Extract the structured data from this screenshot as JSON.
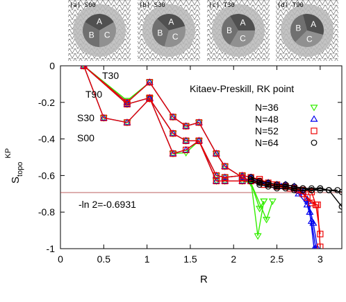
{
  "chart_data": {
    "type": "line",
    "title": "",
    "xlabel": "R",
    "ylabel": "S_topo^KP",
    "ylabel_main": "S",
    "ylabel_sub": "topo",
    "ylabel_sup": "KP",
    "xlim": [
      0,
      3.25
    ],
    "ylim": [
      -1,
      0
    ],
    "xticks": [
      0,
      0.5,
      1,
      1.5,
      2,
      2.5,
      3
    ],
    "xtick_labels": [
      "0",
      "0.5",
      "1",
      "1.5",
      "2",
      "2.5",
      "3"
    ],
    "yticks": [
      0,
      -0.2,
      -0.4,
      -0.6,
      -0.8,
      -1
    ],
    "ytick_labels": [
      "0",
      "-0.2",
      "-0.4",
      "-0.6",
      "-0.8",
      "-1"
    ],
    "grid": false,
    "legend_title": "Kitaev-Preskill, RK point",
    "legend_position": "top-right",
    "reference_line": {
      "y": -0.6931,
      "label": "-ln 2=-0.6931",
      "color": "#a52a2a"
    },
    "curve_labels": [
      "T30",
      "T90",
      "S30",
      "S00"
    ],
    "series": [
      {
        "name": "N=36",
        "color": "#33ee00",
        "marker": "triangle-down",
        "segments": [
          [
            [
              0.27,
              0
            ],
            [
              0.77,
              -0.21
            ],
            [
              1.03,
              -0.175
            ],
            [
              1.3,
              -0.48
            ],
            [
              1.45,
              -0.475
            ],
            [
              1.6,
              -0.41
            ],
            [
              1.8,
              -0.63
            ],
            [
              1.9,
              -0.63
            ],
            [
              2.1,
              -0.63
            ],
            [
              2.2,
              -0.64
            ],
            [
              2.3,
              -0.78
            ],
            [
              2.35,
              -0.74
            ]
          ],
          [
            [
              0.27,
              0
            ],
            [
              0.77,
              -0.19
            ],
            [
              1.03,
              -0.09
            ],
            [
              1.3,
              -0.28
            ],
            [
              1.45,
              -0.33
            ],
            [
              1.6,
              -0.31
            ],
            [
              1.8,
              -0.48
            ],
            [
              1.9,
              -0.55
            ],
            [
              2.1,
              -0.61
            ],
            [
              2.2,
              -0.63
            ],
            [
              2.28,
              -0.93
            ],
            [
              2.35,
              -0.74
            ]
          ],
          [
            [
              0.27,
              0
            ],
            [
              0.5,
              -0.285
            ],
            [
              0.77,
              -0.31
            ],
            [
              1.03,
              -0.18
            ],
            [
              1.3,
              -0.37
            ],
            [
              1.45,
              -0.41
            ],
            [
              1.6,
              -0.41
            ],
            [
              1.8,
              -0.6
            ],
            [
              1.9,
              -0.61
            ],
            [
              2.1,
              -0.6
            ],
            [
              2.2,
              -0.64
            ],
            [
              2.38,
              -0.84
            ],
            [
              2.45,
              -0.74
            ]
          ]
        ]
      },
      {
        "name": "N=48",
        "color": "#0000ee",
        "marker": "triangle-up",
        "segments": [
          [
            [
              0.27,
              0
            ],
            [
              0.77,
              -0.2
            ],
            [
              1.03,
              -0.09
            ],
            [
              1.3,
              -0.28
            ],
            [
              1.45,
              -0.33
            ],
            [
              1.6,
              -0.31
            ],
            [
              1.8,
              -0.48
            ],
            [
              1.9,
              -0.55
            ],
            [
              2.1,
              -0.61
            ],
            [
              2.2,
              -0.63
            ],
            [
              2.4,
              -0.64
            ],
            [
              2.5,
              -0.65
            ],
            [
              2.6,
              -0.65
            ],
            [
              2.7,
              -0.66
            ],
            [
              2.8,
              -0.69
            ],
            [
              2.85,
              -0.73
            ],
            [
              2.88,
              -0.8
            ],
            [
              2.93,
              -1.0
            ]
          ],
          [
            [
              0.27,
              0
            ],
            [
              0.77,
              -0.21
            ],
            [
              1.03,
              -0.175
            ],
            [
              1.3,
              -0.48
            ],
            [
              1.45,
              -0.46
            ],
            [
              1.6,
              -0.41
            ],
            [
              1.8,
              -0.63
            ],
            [
              1.9,
              -0.63
            ],
            [
              2.1,
              -0.63
            ],
            [
              2.2,
              -0.62
            ],
            [
              2.4,
              -0.65
            ],
            [
              2.5,
              -0.66
            ],
            [
              2.6,
              -0.66
            ],
            [
              2.75,
              -0.7
            ],
            [
              2.85,
              -0.76
            ],
            [
              2.9,
              -0.85
            ],
            [
              2.95,
              -1.0
            ]
          ],
          [
            [
              0.27,
              0
            ],
            [
              0.5,
              -0.285
            ],
            [
              0.77,
              -0.31
            ],
            [
              1.03,
              -0.18
            ],
            [
              1.3,
              -0.37
            ],
            [
              1.45,
              -0.41
            ],
            [
              1.6,
              -0.41
            ],
            [
              1.8,
              -0.6
            ],
            [
              1.9,
              -0.61
            ],
            [
              2.1,
              -0.6
            ],
            [
              2.2,
              -0.61
            ],
            [
              2.4,
              -0.64
            ],
            [
              2.55,
              -0.66
            ],
            [
              2.7,
              -0.67
            ],
            [
              2.8,
              -0.69
            ],
            [
              2.86,
              -0.74
            ],
            [
              2.92,
              -0.86
            ],
            [
              2.97,
              -1.0
            ]
          ]
        ]
      },
      {
        "name": "N=52",
        "color": "#ee0000",
        "marker": "square",
        "segments": [
          [
            [
              0.27,
              0
            ],
            [
              0.77,
              -0.2
            ],
            [
              1.03,
              -0.09
            ],
            [
              1.3,
              -0.28
            ],
            [
              1.45,
              -0.33
            ],
            [
              1.6,
              -0.31
            ],
            [
              1.8,
              -0.48
            ],
            [
              1.9,
              -0.55
            ],
            [
              2.1,
              -0.61
            ],
            [
              2.2,
              -0.63
            ],
            [
              2.3,
              -0.63
            ],
            [
              2.4,
              -0.64
            ],
            [
              2.5,
              -0.65
            ],
            [
              2.6,
              -0.66
            ],
            [
              2.7,
              -0.67
            ],
            [
              2.8,
              -0.68
            ],
            [
              2.9,
              -0.69
            ],
            [
              2.95,
              -0.76
            ],
            [
              3.0,
              -0.92
            ]
          ],
          [
            [
              0.27,
              0
            ],
            [
              0.77,
              -0.21
            ],
            [
              1.03,
              -0.175
            ],
            [
              1.3,
              -0.48
            ],
            [
              1.45,
              -0.46
            ],
            [
              1.6,
              -0.41
            ],
            [
              1.8,
              -0.63
            ],
            [
              1.9,
              -0.63
            ],
            [
              2.1,
              -0.63
            ],
            [
              2.2,
              -0.63
            ],
            [
              2.35,
              -0.65
            ],
            [
              2.5,
              -0.66
            ],
            [
              2.65,
              -0.67
            ],
            [
              2.8,
              -0.7
            ],
            [
              2.9,
              -0.75
            ],
            [
              2.97,
              -0.76
            ],
            [
              3.0,
              -0.99
            ]
          ],
          [
            [
              0.27,
              0
            ],
            [
              0.5,
              -0.285
            ],
            [
              0.77,
              -0.31
            ],
            [
              1.03,
              -0.18
            ],
            [
              1.3,
              -0.37
            ],
            [
              1.45,
              -0.41
            ],
            [
              1.6,
              -0.41
            ],
            [
              1.8,
              -0.6
            ],
            [
              1.9,
              -0.61
            ],
            [
              2.1,
              -0.6
            ],
            [
              2.2,
              -0.61
            ],
            [
              2.3,
              -0.62
            ],
            [
              2.45,
              -0.65
            ],
            [
              2.6,
              -0.66
            ],
            [
              2.75,
              -0.68
            ],
            [
              2.85,
              -0.72
            ],
            [
              2.95,
              -0.76
            ]
          ]
        ]
      },
      {
        "name": "N=64",
        "color": "#000000",
        "marker": "circle",
        "segments": [
          [
            [
              2.2,
              -0.62
            ],
            [
              2.3,
              -0.64
            ],
            [
              2.4,
              -0.65
            ],
            [
              2.5,
              -0.66
            ],
            [
              2.6,
              -0.66
            ],
            [
              2.7,
              -0.67
            ],
            [
              2.8,
              -0.67
            ],
            [
              2.9,
              -0.68
            ],
            [
              3.0,
              -0.67
            ],
            [
              3.1,
              -0.68
            ],
            [
              3.25,
              -0.69
            ]
          ],
          [
            [
              2.2,
              -0.63
            ],
            [
              2.3,
              -0.65
            ],
            [
              2.4,
              -0.66
            ],
            [
              2.5,
              -0.67
            ],
            [
              2.6,
              -0.67
            ],
            [
              2.7,
              -0.68
            ],
            [
              2.8,
              -0.68
            ],
            [
              2.9,
              -0.68
            ],
            [
              3.0,
              -0.68
            ],
            [
              3.1,
              -0.68
            ],
            [
              3.25,
              -0.77
            ]
          ],
          [
            [
              2.2,
              -0.61
            ],
            [
              2.3,
              -0.63
            ],
            [
              2.4,
              -0.64
            ],
            [
              2.5,
              -0.65
            ],
            [
              2.6,
              -0.65
            ],
            [
              2.7,
              -0.66
            ],
            [
              2.8,
              -0.67
            ],
            [
              2.9,
              -0.67
            ],
            [
              3.0,
              -0.67
            ],
            [
              3.1,
              -0.68
            ],
            [
              3.2,
              -0.68
            ]
          ]
        ]
      }
    ]
  },
  "insets": [
    {
      "label": "(a) S00",
      "regions": [
        "A",
        "B",
        "C"
      ]
    },
    {
      "label": "(b) S30",
      "regions": [
        "A",
        "B",
        "C"
      ]
    },
    {
      "label": "(c) T30",
      "regions": [
        "A",
        "B",
        "C"
      ]
    },
    {
      "label": "(d) T90",
      "regions": [
        "A",
        "B",
        "C"
      ]
    }
  ]
}
